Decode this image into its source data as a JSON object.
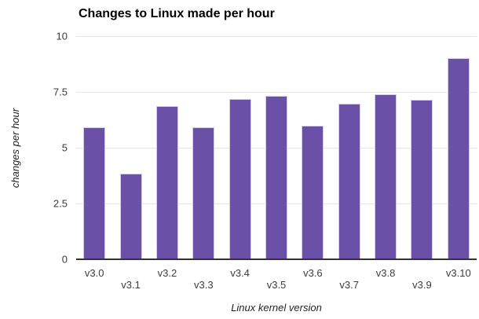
{
  "title": "Changes to Linux made per hour",
  "chart_data": {
    "type": "bar",
    "title": "Changes to Linux made per hour",
    "xlabel": "Linux kernel version",
    "ylabel": "changes per hour",
    "categories": [
      "v3.0",
      "v3.1",
      "v3.2",
      "v3.3",
      "v3.4",
      "v3.5",
      "v3.6",
      "v3.7",
      "v3.8",
      "v3.9",
      "v3.10"
    ],
    "values": [
      5.9,
      3.85,
      6.88,
      5.9,
      7.19,
      7.31,
      5.99,
      6.97,
      7.38,
      7.14,
      9.02
    ],
    "ylim": [
      0,
      10
    ],
    "yticks": [
      0,
      2.5,
      5,
      7.5,
      10
    ],
    "ytick_labels": [
      "0",
      "2.5",
      "5",
      "7.5",
      "10"
    ],
    "grid": true,
    "legend": "none",
    "x_labels_staggered": true
  },
  "colors": {
    "bar": "#6A51A7",
    "bar_edge": "#d4cbec",
    "grid": "#e6e6e6",
    "axisline": "#333333",
    "tick": "#3b3b3b",
    "axtitle": "#1f1f1f",
    "title": "#000000",
    "bg": "#ffffff"
  }
}
